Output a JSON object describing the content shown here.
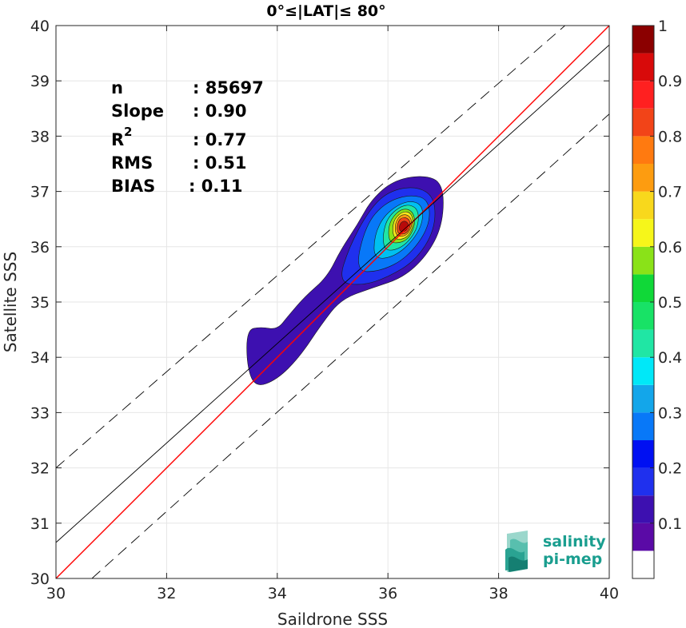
{
  "chart_data": {
    "type": "heatmap",
    "title": "0°≤|LAT|≤ 80°",
    "xlabel": "Saildrone SSS",
    "ylabel": "Satellite SSS",
    "xlim": [
      30,
      40
    ],
    "ylim": [
      30,
      40
    ],
    "x_ticks": [
      "30",
      "32",
      "34",
      "36",
      "38",
      "40"
    ],
    "y_ticks": [
      "30",
      "31",
      "32",
      "33",
      "34",
      "35",
      "36",
      "37",
      "38",
      "39",
      "40"
    ],
    "grid": true,
    "stats": [
      {
        "label": "n",
        "value": ": 85697"
      },
      {
        "label": "Slope",
        "value": ": 0.90"
      },
      {
        "label": "R",
        "sup": "2",
        "value": ": 0.77"
      },
      {
        "label": "RMS",
        "value": ": 0.51"
      },
      {
        "label": "BIAS",
        "value": ": 0.11"
      }
    ],
    "lines": [
      {
        "kind": "identity",
        "color": "#ff0000",
        "style": "solid",
        "intercept": 0,
        "slope": 1
      },
      {
        "kind": "regression",
        "color": "#000000",
        "style": "solid",
        "slope": 0.9,
        "points": [
          [
            30,
            30.65
          ],
          [
            40,
            39.65
          ]
        ]
      },
      {
        "kind": "upper-bound",
        "color": "#000000",
        "style": "dashed",
        "points": [
          [
            30,
            32.0
          ],
          [
            39.2,
            40.0
          ]
        ]
      },
      {
        "kind": "lower-bound",
        "color": "#000000",
        "style": "dashed",
        "points": [
          [
            30.65,
            30.0
          ],
          [
            40,
            38.4
          ]
        ]
      }
    ],
    "density_peak": {
      "x": 36.3,
      "y": 36.35,
      "level": 1.0
    },
    "contour_levels": [
      {
        "level": 0.05,
        "color": "#3d10b0",
        "polygon": [
          [
            33.45,
            34.5
          ],
          [
            33.45,
            33.85
          ],
          [
            33.6,
            33.45
          ],
          [
            34.0,
            33.6
          ],
          [
            34.4,
            34.0
          ],
          [
            34.8,
            34.6
          ],
          [
            35.15,
            35.05
          ],
          [
            35.7,
            35.25
          ],
          [
            36.3,
            35.45
          ],
          [
            36.75,
            35.9
          ],
          [
            37.0,
            36.45
          ],
          [
            37.0,
            37.15
          ],
          [
            36.65,
            37.3
          ],
          [
            36.1,
            37.2
          ],
          [
            35.7,
            36.85
          ],
          [
            35.45,
            36.4
          ],
          [
            35.15,
            35.95
          ],
          [
            34.9,
            35.45
          ],
          [
            34.5,
            35.1
          ],
          [
            34.2,
            34.75
          ],
          [
            34.0,
            34.5
          ],
          [
            33.7,
            34.55
          ]
        ]
      },
      {
        "level": 0.15,
        "color": "#1f30ee",
        "polygon": [
          [
            35.1,
            35.35
          ],
          [
            35.55,
            35.3
          ],
          [
            36.0,
            35.45
          ],
          [
            36.5,
            35.75
          ],
          [
            36.85,
            36.3
          ],
          [
            36.85,
            36.9
          ],
          [
            36.5,
            37.1
          ],
          [
            36.0,
            37.0
          ],
          [
            35.65,
            36.65
          ],
          [
            35.3,
            36.0
          ]
        ]
      },
      {
        "level": 0.25,
        "color": "#0878f8",
        "polygon": [
          [
            35.4,
            35.55
          ],
          [
            35.85,
            35.55
          ],
          [
            36.35,
            35.8
          ],
          [
            36.75,
            36.35
          ],
          [
            36.75,
            36.85
          ],
          [
            36.4,
            36.95
          ],
          [
            35.95,
            36.8
          ],
          [
            35.6,
            36.4
          ]
        ]
      },
      {
        "level": 0.35,
        "color": "#00c0f0",
        "polygon": [
          [
            35.75,
            35.75
          ],
          [
            36.2,
            35.85
          ],
          [
            36.6,
            36.3
          ],
          [
            36.65,
            36.75
          ],
          [
            36.35,
            36.85
          ],
          [
            35.95,
            36.6
          ],
          [
            35.75,
            36.2
          ]
        ]
      },
      {
        "level": 0.45,
        "color": "#20e6a4",
        "polygon": [
          [
            35.95,
            35.9
          ],
          [
            36.3,
            36.0
          ],
          [
            36.55,
            36.35
          ],
          [
            36.55,
            36.7
          ],
          [
            36.3,
            36.78
          ],
          [
            36.0,
            36.55
          ],
          [
            35.9,
            36.2
          ]
        ]
      },
      {
        "level": 0.55,
        "color": "#8ae218",
        "polygon": [
          [
            36.05,
            36.05
          ],
          [
            36.35,
            36.1
          ],
          [
            36.5,
            36.4
          ],
          [
            36.45,
            36.65
          ],
          [
            36.25,
            36.7
          ],
          [
            36.05,
            36.5
          ],
          [
            36.0,
            36.25
          ]
        ]
      },
      {
        "level": 0.65,
        "color": "#f8e81c",
        "polygon": [
          [
            36.1,
            36.12
          ],
          [
            36.35,
            36.15
          ],
          [
            36.47,
            36.4
          ],
          [
            36.42,
            36.62
          ],
          [
            36.25,
            36.64
          ],
          [
            36.08,
            36.45
          ]
        ]
      },
      {
        "level": 0.75,
        "color": "#fd9c10",
        "polygon": [
          [
            36.15,
            36.18
          ],
          [
            36.35,
            36.2
          ],
          [
            36.45,
            36.42
          ],
          [
            36.38,
            36.58
          ],
          [
            36.22,
            36.58
          ],
          [
            36.12,
            36.4
          ]
        ]
      },
      {
        "level": 0.85,
        "color": "#f24418",
        "polygon": [
          [
            36.18,
            36.22
          ],
          [
            36.35,
            36.24
          ],
          [
            36.42,
            36.42
          ],
          [
            36.35,
            36.53
          ],
          [
            36.22,
            36.52
          ],
          [
            36.16,
            36.38
          ]
        ]
      },
      {
        "level": 0.95,
        "color": "#b80a0a",
        "polygon": [
          [
            36.22,
            36.27
          ],
          [
            36.33,
            36.28
          ],
          [
            36.38,
            36.4
          ],
          [
            36.32,
            36.47
          ],
          [
            36.24,
            36.45
          ],
          [
            36.2,
            36.36
          ]
        ]
      }
    ],
    "colorbar": {
      "range": [
        0,
        1
      ],
      "tick_labels": [
        "0.1",
        "0.2",
        "0.3",
        "0.4",
        "0.5",
        "0.6",
        "0.7",
        "0.8",
        "0.9",
        "1"
      ],
      "bands": [
        {
          "from": 0.0,
          "to": 0.05,
          "color": "#ffffff"
        },
        {
          "from": 0.05,
          "to": 0.1,
          "color": "#5a0aa6"
        },
        {
          "from": 0.1,
          "to": 0.15,
          "color": "#3d10b0"
        },
        {
          "from": 0.15,
          "to": 0.2,
          "color": "#1f30ee"
        },
        {
          "from": 0.2,
          "to": 0.25,
          "color": "#0010f2"
        },
        {
          "from": 0.25,
          "to": 0.3,
          "color": "#0878f8"
        },
        {
          "from": 0.3,
          "to": 0.35,
          "color": "#13a6ea"
        },
        {
          "from": 0.35,
          "to": 0.4,
          "color": "#00e8f8"
        },
        {
          "from": 0.4,
          "to": 0.45,
          "color": "#20e6a4"
        },
        {
          "from": 0.45,
          "to": 0.5,
          "color": "#18e266"
        },
        {
          "from": 0.5,
          "to": 0.55,
          "color": "#10d838"
        },
        {
          "from": 0.55,
          "to": 0.6,
          "color": "#8ae218"
        },
        {
          "from": 0.6,
          "to": 0.65,
          "color": "#f6f61a"
        },
        {
          "from": 0.65,
          "to": 0.7,
          "color": "#f8d81c"
        },
        {
          "from": 0.7,
          "to": 0.75,
          "color": "#fd9c10"
        },
        {
          "from": 0.75,
          "to": 0.8,
          "color": "#ff7a10"
        },
        {
          "from": 0.8,
          "to": 0.85,
          "color": "#f24418"
        },
        {
          "from": 0.85,
          "to": 0.9,
          "color": "#ff2020"
        },
        {
          "from": 0.9,
          "to": 0.95,
          "color": "#d80a0a"
        },
        {
          "from": 0.95,
          "to": 1.0,
          "color": "#8b0000"
        }
      ]
    }
  },
  "logo": {
    "line1": "salinity",
    "line2": "pi-mep",
    "accent": "#1a9e8f"
  }
}
